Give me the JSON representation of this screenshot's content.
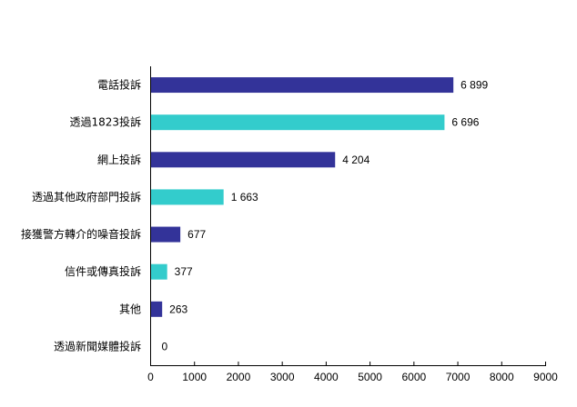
{
  "chart_data": {
    "type": "bar",
    "orientation": "horizontal",
    "categories": [
      "電話投訴",
      "透過1823投訴",
      "網上投訴",
      "透過其他政府部門投訴",
      "接獲警方轉介的噪音投訴",
      "信件或傳真投訴",
      "其他",
      "透過新聞媒體投訴"
    ],
    "values": [
      6899,
      6696,
      4204,
      1663,
      677,
      377,
      263,
      0
    ],
    "data_labels": [
      "6 899",
      "6 696",
      "4 204",
      "1 663",
      "677",
      "377",
      "263",
      "0"
    ],
    "bar_colors": [
      "#333399",
      "#33cccc",
      "#333399",
      "#33cccc",
      "#333399",
      "#33cccc",
      "#333399",
      "#33cccc"
    ],
    "xlim": [
      0,
      9000
    ],
    "xticks": [
      "0",
      "1000",
      "2000",
      "3000",
      "4000",
      "5000",
      "6000",
      "7000",
      "8000",
      "9000"
    ],
    "grid": false,
    "legend": "none",
    "title": "",
    "xlabel": "",
    "ylabel": ""
  }
}
